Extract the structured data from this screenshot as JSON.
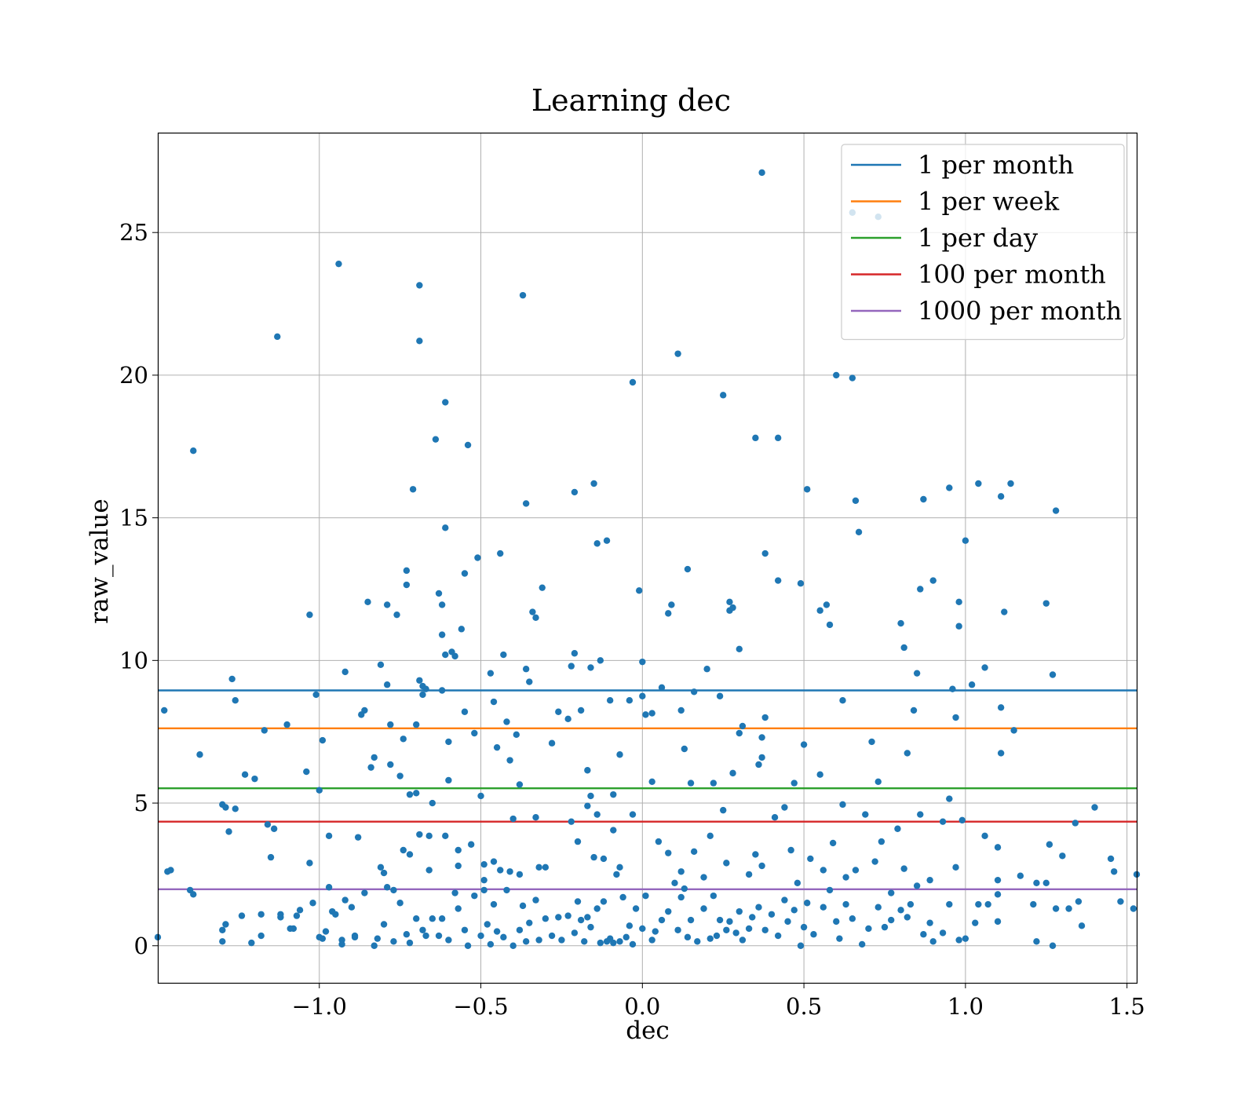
{
  "chart_data": {
    "type": "scatter",
    "title": "Learning dec",
    "xlabel": "dec",
    "ylabel": "raw_value",
    "xlim": [
      -1.5,
      1.53
    ],
    "ylim": [
      -1.3,
      28.5
    ],
    "xticks": [
      -1.0,
      -0.5,
      0.0,
      0.5,
      1.0,
      1.5
    ],
    "xtick_labels": [
      "−1.0",
      "−0.5",
      "0.0",
      "0.5",
      "1.0",
      "1.5"
    ],
    "yticks": [
      0,
      5,
      10,
      15,
      20,
      25
    ],
    "ytick_labels": [
      "0",
      "5",
      "10",
      "15",
      "20",
      "25"
    ],
    "grid": true,
    "legend_position": "top-right",
    "point_color": "#1f77b4",
    "thresholds": [
      {
        "name": "1 per month",
        "value": 8.95,
        "color": "#1f77b4"
      },
      {
        "name": "1 per week",
        "value": 7.62,
        "color": "#ff7f0e"
      },
      {
        "name": "1 per day",
        "value": 5.52,
        "color": "#2ca02c"
      },
      {
        "name": "100 per month",
        "value": 4.35,
        "color": "#d62728"
      },
      {
        "name": "1000 per month",
        "value": 1.98,
        "color": "#9467bd"
      }
    ],
    "points": [
      [
        -1.5,
        0.3
      ],
      [
        -1.48,
        8.25
      ],
      [
        -1.47,
        2.6
      ],
      [
        -1.46,
        2.65
      ],
      [
        -1.39,
        17.35
      ],
      [
        -1.37,
        6.7
      ],
      [
        -1.39,
        1.8
      ],
      [
        -1.4,
        1.95
      ],
      [
        -1.3,
        4.95
      ],
      [
        -1.29,
        4.85
      ],
      [
        -1.3,
        0.55
      ],
      [
        -1.29,
        0.75
      ],
      [
        -1.3,
        0.15
      ],
      [
        -1.27,
        9.35
      ],
      [
        -1.26,
        8.6
      ],
      [
        -1.26,
        4.8
      ],
      [
        -1.28,
        4.0
      ],
      [
        -1.23,
        6.0
      ],
      [
        -1.2,
        5.85
      ],
      [
        -1.21,
        0.1
      ],
      [
        -1.18,
        1.1
      ],
      [
        -1.17,
        7.55
      ],
      [
        -1.16,
        4.25
      ],
      [
        -1.15,
        3.1
      ],
      [
        -1.14,
        4.1
      ],
      [
        -1.13,
        21.35
      ],
      [
        -1.12,
        1.1
      ],
      [
        -1.1,
        7.75
      ],
      [
        -1.09,
        0.6
      ],
      [
        -1.07,
        1.05
      ],
      [
        -1.06,
        1.25
      ],
      [
        -1.04,
        6.1
      ],
      [
        -1.03,
        11.6
      ],
      [
        -1.03,
        2.9
      ],
      [
        -1.01,
        8.8
      ],
      [
        -1.0,
        5.45
      ],
      [
        -0.99,
        7.2
      ],
      [
        -0.98,
        0.5
      ],
      [
        -0.99,
        0.25
      ],
      [
        -0.97,
        3.85
      ],
      [
        -0.96,
        1.2
      ],
      [
        -0.95,
        1.1
      ],
      [
        -0.94,
        23.9
      ],
      [
        -0.93,
        0.2
      ],
      [
        -0.92,
        9.6
      ],
      [
        -0.92,
        1.6
      ],
      [
        -0.9,
        1.35
      ],
      [
        -0.89,
        0.35
      ],
      [
        -0.88,
        3.8
      ],
      [
        -0.87,
        8.1
      ],
      [
        -0.86,
        8.25
      ],
      [
        -0.85,
        12.05
      ],
      [
        -0.84,
        6.25
      ],
      [
        -0.83,
        6.6
      ],
      [
        -0.82,
        0.25
      ],
      [
        -0.81,
        9.85
      ],
      [
        -0.81,
        2.75
      ],
      [
        -0.8,
        2.55
      ],
      [
        -0.79,
        9.15
      ],
      [
        -0.78,
        7.75
      ],
      [
        -0.78,
        6.35
      ],
      [
        -0.79,
        11.95
      ],
      [
        -0.77,
        1.95
      ],
      [
        -0.76,
        11.6
      ],
      [
        -0.75,
        5.95
      ],
      [
        -0.74,
        7.25
      ],
      [
        -0.73,
        13.15
      ],
      [
        -0.73,
        12.65
      ],
      [
        -0.72,
        5.3
      ],
      [
        -0.72,
        3.2
      ],
      [
        -0.71,
        16.0
      ],
      [
        -0.7,
        7.75
      ],
      [
        -0.7,
        5.35
      ],
      [
        -0.69,
        23.15
      ],
      [
        -0.69,
        21.2
      ],
      [
        -0.69,
        9.3
      ],
      [
        -0.68,
        9.1
      ],
      [
        -0.68,
        8.8
      ],
      [
        -0.67,
        9.0
      ],
      [
        -0.66,
        3.85
      ],
      [
        -0.65,
        5.0
      ],
      [
        -0.64,
        17.75
      ],
      [
        -0.63,
        12.35
      ],
      [
        -0.62,
        11.95
      ],
      [
        -0.62,
        10.9
      ],
      [
        -0.61,
        19.05
      ],
      [
        -0.61,
        14.65
      ],
      [
        -0.61,
        10.2
      ],
      [
        -0.62,
        8.95
      ],
      [
        -0.6,
        7.15
      ],
      [
        -0.6,
        5.8
      ],
      [
        -0.59,
        10.3
      ],
      [
        -0.58,
        10.15
      ],
      [
        -0.57,
        3.35
      ],
      [
        -0.57,
        2.8
      ],
      [
        -0.56,
        11.1
      ],
      [
        -0.55,
        13.05
      ],
      [
        -0.55,
        8.2
      ],
      [
        -0.54,
        17.55
      ],
      [
        -0.53,
        3.55
      ],
      [
        -0.52,
        7.45
      ],
      [
        -0.51,
        13.6
      ],
      [
        -0.5,
        5.25
      ],
      [
        -0.49,
        2.85
      ],
      [
        -0.47,
        9.55
      ],
      [
        -0.46,
        8.55
      ],
      [
        -0.45,
        6.95
      ],
      [
        -0.44,
        13.75
      ],
      [
        -0.43,
        10.2
      ],
      [
        -0.42,
        7.85
      ],
      [
        -0.41,
        6.5
      ],
      [
        -0.4,
        4.45
      ],
      [
        -0.39,
        7.4
      ],
      [
        -0.38,
        5.65
      ],
      [
        -0.37,
        22.8
      ],
      [
        -0.36,
        15.5
      ],
      [
        -0.36,
        9.7
      ],
      [
        -0.35,
        9.25
      ],
      [
        -0.34,
        11.7
      ],
      [
        -0.33,
        11.5
      ],
      [
        -0.33,
        4.5
      ],
      [
        -0.32,
        2.75
      ],
      [
        -0.31,
        12.55
      ],
      [
        -0.28,
        7.1
      ],
      [
        -0.26,
        8.2
      ],
      [
        -0.23,
        7.95
      ],
      [
        -0.22,
        9.8
      ],
      [
        -0.21,
        15.9
      ],
      [
        -0.21,
        10.25
      ],
      [
        -0.19,
        8.25
      ],
      [
        -0.17,
        6.15
      ],
      [
        -0.17,
        4.9
      ],
      [
        -0.16,
        9.75
      ],
      [
        -0.15,
        16.2
      ],
      [
        -0.14,
        14.1
      ],
      [
        -0.13,
        10.0
      ],
      [
        -0.11,
        14.2
      ],
      [
        -0.1,
        8.6
      ],
      [
        -0.09,
        4.05
      ],
      [
        -0.07,
        6.7
      ],
      [
        -0.04,
        8.6
      ],
      [
        -0.03,
        19.75
      ],
      [
        -0.01,
        12.45
      ],
      [
        0.0,
        9.95
      ],
      [
        0.0,
        8.75
      ],
      [
        0.01,
        8.1
      ],
      [
        0.03,
        8.15
      ],
      [
        0.03,
        5.75
      ],
      [
        0.06,
        9.05
      ],
      [
        0.08,
        11.65
      ],
      [
        0.09,
        11.95
      ],
      [
        0.11,
        20.75
      ],
      [
        0.12,
        8.25
      ],
      [
        0.13,
        6.9
      ],
      [
        0.14,
        13.2
      ],
      [
        0.15,
        5.7
      ],
      [
        0.16,
        8.9
      ],
      [
        0.2,
        9.7
      ],
      [
        0.22,
        5.7
      ],
      [
        0.24,
        8.75
      ],
      [
        0.25,
        4.75
      ],
      [
        0.25,
        19.3
      ],
      [
        0.27,
        12.05
      ],
      [
        0.27,
        11.75
      ],
      [
        0.28,
        11.85
      ],
      [
        0.28,
        6.05
      ],
      [
        0.3,
        10.4
      ],
      [
        0.3,
        7.45
      ],
      [
        0.31,
        7.7
      ],
      [
        0.35,
        17.8
      ],
      [
        0.36,
        6.35
      ],
      [
        0.37,
        27.1
      ],
      [
        0.37,
        6.6
      ],
      [
        0.37,
        7.3
      ],
      [
        0.38,
        8.0
      ],
      [
        0.38,
        13.75
      ],
      [
        0.42,
        17.8
      ],
      [
        0.42,
        12.8
      ],
      [
        0.47,
        5.7
      ],
      [
        0.49,
        12.7
      ],
      [
        0.5,
        7.05
      ],
      [
        0.51,
        16.0
      ],
      [
        0.55,
        6.0
      ],
      [
        0.55,
        11.75
      ],
      [
        0.57,
        11.95
      ],
      [
        0.58,
        11.25
      ],
      [
        0.6,
        20.0
      ],
      [
        0.62,
        8.6
      ],
      [
        0.62,
        4.95
      ],
      [
        0.65,
        25.7
      ],
      [
        0.65,
        19.9
      ],
      [
        0.66,
        15.6
      ],
      [
        0.67,
        14.5
      ],
      [
        0.69,
        4.6
      ],
      [
        0.71,
        7.15
      ],
      [
        0.73,
        25.55
      ],
      [
        0.73,
        5.75
      ],
      [
        0.74,
        3.65
      ],
      [
        0.8,
        11.3
      ],
      [
        0.81,
        10.45
      ],
      [
        0.82,
        6.75
      ],
      [
        0.84,
        8.25
      ],
      [
        0.85,
        9.55
      ],
      [
        0.86,
        12.5
      ],
      [
        0.87,
        15.65
      ],
      [
        0.9,
        12.8
      ],
      [
        0.95,
        16.05
      ],
      [
        0.96,
        9.0
      ],
      [
        0.97,
        8.0
      ],
      [
        0.98,
        12.05
      ],
      [
        0.98,
        11.2
      ],
      [
        0.99,
        4.4
      ],
      [
        1.0,
        14.2
      ],
      [
        1.02,
        9.15
      ],
      [
        1.04,
        16.2
      ],
      [
        1.06,
        9.75
      ],
      [
        1.11,
        15.75
      ],
      [
        1.11,
        8.35
      ],
      [
        1.11,
        6.75
      ],
      [
        1.12,
        11.7
      ],
      [
        1.14,
        16.2
      ],
      [
        1.15,
        7.55
      ],
      [
        1.17,
        2.45
      ],
      [
        1.21,
        1.45
      ],
      [
        1.25,
        12.0
      ],
      [
        1.26,
        3.55
      ],
      [
        1.27,
        9.5
      ],
      [
        1.28,
        15.25
      ],
      [
        1.3,
        3.15
      ],
      [
        1.34,
        4.3
      ],
      [
        1.4,
        4.85
      ],
      [
        1.45,
        3.05
      ],
      [
        1.46,
        2.6
      ],
      [
        1.48,
        1.55
      ],
      [
        1.53,
        2.5
      ],
      [
        1.52,
        1.3
      ],
      [
        1.35,
        1.55
      ],
      [
        1.32,
        1.3
      ],
      [
        1.28,
        1.3
      ],
      [
        1.25,
        2.2
      ],
      [
        1.22,
        2.2
      ],
      [
        1.22,
        0.15
      ],
      [
        1.27,
        0.0
      ],
      [
        1.36,
        0.7
      ],
      [
        1.1,
        0.85
      ],
      [
        1.1,
        1.8
      ],
      [
        1.1,
        2.3
      ],
      [
        1.07,
        1.45
      ],
      [
        1.04,
        1.45
      ],
      [
        1.03,
        0.8
      ],
      [
        1.0,
        0.25
      ],
      [
        0.98,
        0.2
      ],
      [
        0.95,
        1.45
      ],
      [
        0.93,
        0.45
      ],
      [
        0.9,
        0.15
      ],
      [
        0.89,
        0.8
      ],
      [
        0.87,
        0.4
      ],
      [
        0.85,
        2.1
      ],
      [
        0.83,
        1.45
      ],
      [
        0.82,
        1.0
      ],
      [
        0.8,
        1.25
      ],
      [
        0.77,
        0.9
      ],
      [
        0.75,
        0.65
      ],
      [
        0.73,
        1.35
      ],
      [
        0.7,
        0.6
      ],
      [
        0.68,
        0.05
      ],
      [
        0.65,
        0.95
      ],
      [
        0.63,
        1.45
      ],
      [
        0.61,
        0.25
      ],
      [
        0.6,
        0.85
      ],
      [
        0.58,
        1.95
      ],
      [
        0.56,
        1.35
      ],
      [
        0.53,
        0.4
      ],
      [
        0.51,
        1.5
      ],
      [
        0.5,
        0.65
      ],
      [
        0.49,
        0.0
      ],
      [
        0.47,
        1.25
      ],
      [
        0.45,
        0.85
      ],
      [
        0.44,
        1.6
      ],
      [
        0.42,
        0.35
      ],
      [
        0.4,
        1.1
      ],
      [
        0.38,
        0.55
      ],
      [
        0.36,
        1.35
      ],
      [
        0.34,
        1.0
      ],
      [
        0.33,
        0.6
      ],
      [
        0.31,
        0.2
      ],
      [
        0.3,
        1.2
      ],
      [
        0.29,
        0.45
      ],
      [
        0.27,
        0.85
      ],
      [
        0.26,
        0.55
      ],
      [
        0.24,
        0.9
      ],
      [
        0.23,
        0.35
      ],
      [
        0.22,
        1.75
      ],
      [
        0.21,
        0.25
      ],
      [
        0.19,
        1.3
      ],
      [
        0.17,
        0.15
      ],
      [
        0.15,
        0.9
      ],
      [
        0.14,
        0.3
      ],
      [
        0.13,
        2.0
      ],
      [
        0.12,
        1.7
      ],
      [
        0.11,
        0.55
      ],
      [
        0.1,
        2.2
      ],
      [
        0.08,
        1.2
      ],
      [
        0.06,
        0.9
      ],
      [
        0.04,
        0.5
      ],
      [
        0.03,
        0.2
      ],
      [
        0.01,
        1.75
      ],
      [
        0.0,
        0.6
      ],
      [
        -0.02,
        1.3
      ],
      [
        -0.03,
        0.05
      ],
      [
        -0.04,
        0.7
      ],
      [
        -0.05,
        0.3
      ],
      [
        -0.06,
        1.7
      ],
      [
        -0.07,
        0.15
      ],
      [
        -0.08,
        2.5
      ],
      [
        -0.09,
        0.1
      ],
      [
        -0.1,
        0.25
      ],
      [
        -0.11,
        0.15
      ],
      [
        -0.12,
        1.55
      ],
      [
        -0.13,
        0.1
      ],
      [
        -0.14,
        1.3
      ],
      [
        -0.15,
        3.1
      ],
      [
        -0.16,
        0.65
      ],
      [
        -0.17,
        1.0
      ],
      [
        -0.18,
        0.15
      ],
      [
        -0.19,
        0.9
      ],
      [
        -0.2,
        1.55
      ],
      [
        -0.21,
        0.45
      ],
      [
        -0.22,
        4.35
      ],
      [
        -0.23,
        1.05
      ],
      [
        -0.25,
        0.2
      ],
      [
        -0.26,
        1.0
      ],
      [
        -0.28,
        0.35
      ],
      [
        -0.3,
        0.95
      ],
      [
        -0.32,
        0.2
      ],
      [
        -0.33,
        1.6
      ],
      [
        -0.35,
        0.8
      ],
      [
        -0.36,
        0.15
      ],
      [
        -0.37,
        1.4
      ],
      [
        -0.38,
        0.55
      ],
      [
        -0.4,
        0.0
      ],
      [
        -0.41,
        2.6
      ],
      [
        -0.42,
        1.95
      ],
      [
        -0.43,
        0.3
      ],
      [
        -0.45,
        0.5
      ],
      [
        -0.46,
        1.45
      ],
      [
        -0.47,
        0.05
      ],
      [
        -0.48,
        0.75
      ],
      [
        -0.49,
        1.95
      ],
      [
        -0.5,
        0.35
      ],
      [
        -0.52,
        1.75
      ],
      [
        -0.54,
        0.0
      ],
      [
        -0.55,
        0.55
      ],
      [
        -0.57,
        1.3
      ],
      [
        -0.58,
        1.85
      ],
      [
        -0.6,
        0.2
      ],
      [
        -0.62,
        0.95
      ],
      [
        -0.63,
        0.35
      ],
      [
        -0.65,
        0.95
      ],
      [
        -0.66,
        2.65
      ],
      [
        -0.67,
        0.35
      ],
      [
        -0.68,
        0.55
      ],
      [
        -0.7,
        0.95
      ],
      [
        -0.72,
        0.1
      ],
      [
        -0.73,
        0.4
      ],
      [
        -0.75,
        1.5
      ],
      [
        -0.77,
        0.15
      ],
      [
        -0.79,
        2.05
      ],
      [
        -0.8,
        0.75
      ],
      [
        -0.83,
        0.0
      ],
      [
        -0.86,
        1.85
      ],
      [
        -0.89,
        0.3
      ],
      [
        -0.93,
        0.05
      ],
      [
        -0.97,
        2.05
      ],
      [
        -1.0,
        0.3
      ],
      [
        -1.02,
        1.5
      ],
      [
        -1.08,
        0.6
      ],
      [
        -1.12,
        1.0
      ],
      [
        -1.18,
        0.35
      ],
      [
        -1.24,
        1.05
      ],
      [
        -0.74,
        3.35
      ],
      [
        -0.69,
        3.9
      ],
      [
        -0.61,
        3.85
      ],
      [
        -0.49,
        2.3
      ],
      [
        -0.46,
        2.95
      ],
      [
        -0.44,
        2.65
      ],
      [
        -0.38,
        2.5
      ],
      [
        -0.3,
        2.75
      ],
      [
        -0.2,
        3.65
      ],
      [
        -0.16,
        5.25
      ],
      [
        -0.14,
        4.6
      ],
      [
        -0.12,
        3.05
      ],
      [
        -0.09,
        5.3
      ],
      [
        -0.07,
        2.75
      ],
      [
        -0.03,
        4.6
      ],
      [
        0.05,
        3.65
      ],
      [
        0.08,
        3.25
      ],
      [
        0.12,
        2.6
      ],
      [
        0.16,
        3.3
      ],
      [
        0.19,
        2.4
      ],
      [
        0.21,
        3.85
      ],
      [
        0.26,
        2.9
      ],
      [
        0.33,
        2.5
      ],
      [
        0.35,
        3.2
      ],
      [
        0.37,
        2.8
      ],
      [
        0.41,
        4.5
      ],
      [
        0.44,
        4.85
      ],
      [
        0.46,
        3.35
      ],
      [
        0.48,
        2.2
      ],
      [
        0.52,
        3.05
      ],
      [
        0.56,
        2.65
      ],
      [
        0.59,
        3.6
      ],
      [
        0.63,
        2.4
      ],
      [
        0.66,
        2.65
      ],
      [
        0.72,
        2.95
      ],
      [
        0.77,
        1.85
      ],
      [
        0.79,
        4.1
      ],
      [
        0.81,
        2.7
      ],
      [
        0.86,
        4.6
      ],
      [
        0.89,
        2.3
      ],
      [
        0.93,
        4.35
      ],
      [
        0.95,
        5.15
      ],
      [
        0.97,
        2.75
      ],
      [
        1.06,
        3.85
      ],
      [
        1.1,
        3.45
      ]
    ]
  }
}
